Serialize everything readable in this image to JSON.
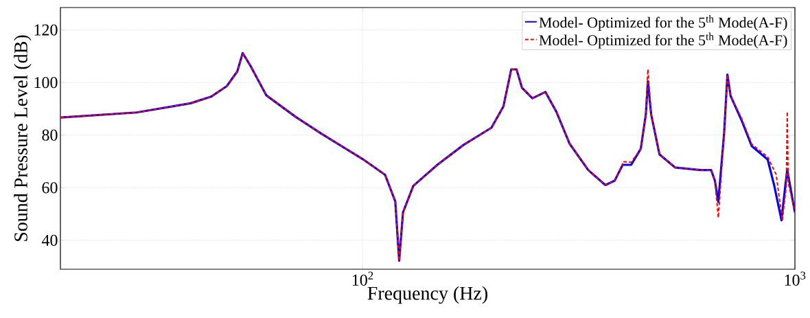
{
  "chart_data": {
    "type": "line",
    "xlabel": "Frequency (Hz)",
    "ylabel": "Sound Pressure Level (dB)",
    "log": "x",
    "grid": true,
    "legend": "top right",
    "xlim": [
      20,
      1000
    ],
    "ylim": [
      29,
      128.5
    ],
    "xticks": [
      {
        "value": 100,
        "label": "10$^{2}$"
      },
      {
        "value": 1000,
        "label": "10$^{3}$"
      }
    ],
    "yticks": [
      40,
      60,
      80,
      100,
      120
    ],
    "series": [
      {
        "name": "Model- Optimized for the 5$^{th}$ Mode(A-F)",
        "color": "#0000ff",
        "line_style": "solid",
        "x": [
          20,
          30,
          40,
          44.6,
          48.5,
          51.3,
          52.8,
          55.1,
          59.9,
          69.9,
          80.4,
          100,
          112.7,
          119,
          121.5,
          124,
          131,
          148.9,
          171.3,
          198.6,
          211.7,
          220.7,
          227,
          233.7,
          247,
          264.8,
          280.6,
          301,
          332.6,
          364.4,
          383,
          399.6,
          418,
          440,
          452,
          457,
          465,
          486,
          528,
          607,
          640,
          653,
          665,
          686,
          698,
          710,
          752,
          795,
          865,
          896,
          931,
          950,
          960,
          1000
        ],
        "values": [
          86.7,
          88.6,
          92.1,
          94.6,
          98.6,
          104.2,
          111.2,
          106.2,
          95.1,
          87.0,
          80.5,
          70.9,
          64.9,
          54.8,
          32.2,
          50.6,
          60.7,
          68.7,
          76.3,
          82.8,
          90.9,
          105,
          105,
          98,
          94,
          96.4,
          88.9,
          76.8,
          66.7,
          61,
          62.7,
          68.7,
          68.7,
          74.8,
          87.9,
          100.5,
          87.9,
          72.7,
          67.7,
          66.7,
          66.7,
          62.7,
          54.6,
          80.8,
          103,
          94.9,
          85.8,
          75.8,
          70.7,
          60.7,
          47.6,
          60.7,
          66.7,
          50.6
        ]
      },
      {
        "name": "Model- Optimized for the 5$^{th}$ Mode(A-F)",
        "color": "#ff0000",
        "line_style": "dashed",
        "x": [
          20,
          30,
          40,
          44.6,
          48.5,
          51.3,
          52.8,
          55.1,
          59.9,
          69.9,
          80.4,
          100,
          112.7,
          119,
          121.5,
          124,
          131,
          148.9,
          171.3,
          198.6,
          211.7,
          220.7,
          227,
          233.7,
          247,
          264.8,
          280.6,
          301,
          332.6,
          364.4,
          383,
          399,
          400,
          418,
          440,
          452,
          457,
          465,
          486,
          528,
          607,
          640,
          653,
          665,
          686,
          698,
          710,
          752,
          795,
          865,
          905,
          935,
          955,
          960,
          965,
          1000
        ],
        "values": [
          86.7,
          88.6,
          92.1,
          94.6,
          98.6,
          104.2,
          111.2,
          106.2,
          95.1,
          87.0,
          80.5,
          70.9,
          64.9,
          54.8,
          32.2,
          50.6,
          60.7,
          68.7,
          76.3,
          82.8,
          90.9,
          105,
          105,
          98,
          94,
          96.4,
          88.9,
          76.8,
          66.7,
          61,
          62.7,
          68.7,
          69.9,
          69.7,
          74.8,
          87.9,
          105,
          87.9,
          72.7,
          67.7,
          66.7,
          66.7,
          62.7,
          48.6,
          80.8,
          103,
          94.9,
          86.5,
          76.5,
          71.7,
          65,
          47.6,
          60.7,
          88.9,
          62,
          50.6
        ]
      }
    ]
  }
}
